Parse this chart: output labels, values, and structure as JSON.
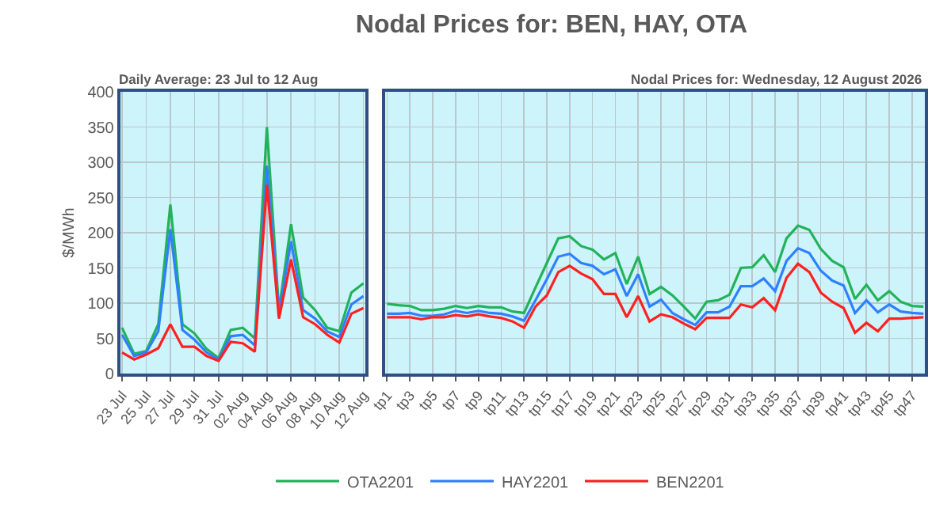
{
  "chart_data": [
    {
      "type": "line",
      "subtitle": "Daily Average: 23 Jul to 12 Aug",
      "ylabel": "$/MWh",
      "categories": [
        "23 Jul",
        null,
        "25 Jul",
        null,
        "27 Jul",
        null,
        "29 Jul",
        null,
        "31 Jul",
        null,
        "02 Aug",
        null,
        "04 Aug",
        null,
        "06 Aug",
        null,
        "08 Aug",
        null,
        "10 Aug",
        null,
        "12 Aug"
      ],
      "series": [
        {
          "name": "OTA2201",
          "color": "#22b35a",
          "values": [
            65,
            28,
            32,
            70,
            240,
            70,
            57,
            35,
            22,
            62,
            65,
            50,
            350,
            90,
            212,
            108,
            90,
            65,
            60,
            115,
            128
          ]
        },
        {
          "name": "HAY2201",
          "color": "#2f80ff",
          "values": [
            55,
            25,
            30,
            60,
            205,
            62,
            48,
            30,
            20,
            53,
            55,
            40,
            295,
            85,
            188,
            90,
            78,
            60,
            52,
            98,
            110
          ]
        },
        {
          "name": "BEN2201",
          "color": "#ff2020",
          "values": [
            30,
            20,
            27,
            36,
            70,
            38,
            38,
            25,
            18,
            45,
            43,
            31,
            268,
            78,
            162,
            80,
            70,
            55,
            44,
            85,
            93
          ]
        }
      ],
      "ylim": [
        0,
        400
      ],
      "yticks": [
        0,
        50,
        100,
        150,
        200,
        250,
        300,
        350,
        400
      ],
      "grid": true,
      "legend": "bottom"
    },
    {
      "type": "line",
      "title": "Nodal Prices for: BEN, HAY, OTA",
      "subtitle": "Nodal Prices for: Wednesday, 12 August 2026",
      "categories": [
        "tp1",
        null,
        "tp3",
        null,
        "tp5",
        null,
        "tp7",
        null,
        "tp9",
        null,
        "tp11",
        null,
        "tp13",
        null,
        "tp15",
        null,
        "tp17",
        null,
        "tp19",
        null,
        "tp21",
        null,
        "tp23",
        null,
        "tp25",
        null,
        "tp27",
        null,
        "tp29",
        null,
        "tp31",
        null,
        "tp33",
        null,
        "tp35",
        null,
        "tp37",
        null,
        "tp39",
        null,
        "tp41",
        null,
        "tp43",
        null,
        "tp45",
        null,
        "tp47",
        null
      ],
      "series": [
        {
          "color": "#22b35a",
          "values": [
            99,
            97,
            96,
            90,
            90,
            92,
            96,
            93,
            96,
            94,
            94,
            88,
            86,
            122,
            157,
            192,
            195,
            181,
            176,
            162,
            171,
            127,
            166,
            113,
            123,
            111,
            95,
            78,
            102,
            104,
            112,
            150,
            151,
            168,
            144,
            192,
            210,
            204,
            177,
            160,
            151,
            106,
            126,
            104,
            117,
            102,
            96,
            95
          ]
        },
        {
          "color": "#2f80ff",
          "values": [
            85,
            85,
            86,
            82,
            82,
            84,
            89,
            86,
            89,
            86,
            85,
            81,
            75,
            104,
            134,
            166,
            170,
            157,
            153,
            141,
            148,
            110,
            141,
            95,
            105,
            86,
            77,
            69,
            87,
            87,
            95,
            124,
            124,
            135,
            117,
            160,
            178,
            171,
            146,
            132,
            125,
            86,
            104,
            87,
            98,
            88,
            86,
            85
          ]
        },
        {
          "color": "#ff2020",
          "values": [
            80,
            80,
            80,
            77,
            80,
            80,
            83,
            81,
            84,
            81,
            79,
            74,
            65,
            95,
            111,
            144,
            153,
            142,
            134,
            113,
            113,
            80,
            110,
            74,
            84,
            80,
            71,
            63,
            79,
            79,
            79,
            98,
            94,
            107,
            90,
            136,
            156,
            144,
            115,
            102,
            93,
            58,
            72,
            60,
            78,
            78,
            79,
            80
          ]
        }
      ],
      "ylim": [
        0,
        400
      ],
      "yticks": [
        0,
        50,
        100,
        150,
        200,
        250,
        300,
        350,
        400
      ],
      "grid": true,
      "tick_labels": "x"
    }
  ]
}
